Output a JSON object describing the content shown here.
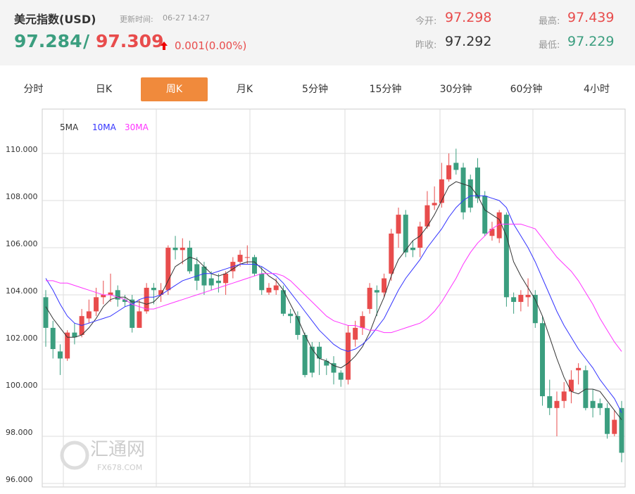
{
  "header": {
    "title": "美元指数(USD)",
    "update_label": "更新时间:",
    "update_time": "06-27 14:27",
    "price": "97.284",
    "separator": "/",
    "price2": "97.309",
    "change": "0.001(0.00%)",
    "stats": [
      {
        "label": "今开:",
        "value": "97.298"
      },
      {
        "label": "最高:",
        "value": "97.439"
      },
      {
        "label": "昨收:",
        "value": "97.292"
      },
      {
        "label": "最低:",
        "value": "97.229"
      }
    ]
  },
  "tabs": [
    "分时",
    "日K",
    "周K",
    "月K",
    "5分钟",
    "15分钟",
    "30分钟",
    "60分钟",
    "4小时"
  ],
  "active_tab": "周K",
  "watermark": {
    "name": "汇通网",
    "site": "FX678.COM"
  },
  "chart_data": {
    "type": "candlestick",
    "up_color": "#e84c4c",
    "down_color": "#3b9e7f",
    "grid": true,
    "ylim": [
      96,
      112
    ],
    "yticks": [
      {
        "value": 96,
        "label": "96.000"
      },
      {
        "value": 98,
        "label": "98.000"
      },
      {
        "value": 100,
        "label": "100.000"
      },
      {
        "value": 102,
        "label": "102.000"
      },
      {
        "value": 104,
        "label": "104.000"
      },
      {
        "value": 106,
        "label": "106.000"
      },
      {
        "value": 108,
        "label": "108.000"
      },
      {
        "value": 110,
        "label": "110.000"
      }
    ],
    "open": [
      103.9,
      102.6,
      101.6,
      101.3,
      102.4,
      102.3,
      103.0,
      103.3,
      103.9,
      104.0,
      104.2,
      103.8,
      103.8,
      102.6,
      103.3,
      104.3,
      104.0,
      104.2,
      106.0,
      105.9,
      106.0,
      105.3,
      105.2,
      104.7,
      104.6,
      104.5,
      105.0,
      105.4,
      105.6,
      105.6,
      104.9,
      104.1,
      104.2,
      104.2,
      103.2,
      103.1,
      102.3,
      101.8,
      101.8,
      101.2,
      101.1,
      100.7,
      100.4,
      102.1,
      102.6,
      103.4,
      104.2,
      104.1,
      104.9,
      106.6,
      107.4,
      106.0,
      106.0,
      106.9,
      107.8,
      107.9,
      108.9,
      109.6,
      109.4,
      108.9,
      109.4,
      108.2,
      106.5,
      106.4,
      107.4,
      103.9,
      103.7,
      103.9,
      104.0,
      102.8,
      99.7,
      99.2,
      99.5,
      99.9,
      100.8,
      100.8,
      99.5,
      99.4,
      99.2,
      98.1,
      99.2
    ],
    "high": [
      104.2,
      102.9,
      101.9,
      102.5,
      102.8,
      103.4,
      103.8,
      104.3,
      104.6,
      104.9,
      104.4,
      104.0,
      104.0,
      103.8,
      104.5,
      104.5,
      104.5,
      106.1,
      106.5,
      106.4,
      106.3,
      105.6,
      105.4,
      105.0,
      104.9,
      105.0,
      105.6,
      105.9,
      106.1,
      105.7,
      105.2,
      104.5,
      104.7,
      104.4,
      103.4,
      103.3,
      102.4,
      102.0,
      102.0,
      101.3,
      101.4,
      100.8,
      102.7,
      102.9,
      103.3,
      104.5,
      104.4,
      104.9,
      106.8,
      107.7,
      107.6,
      106.3,
      107.1,
      108.4,
      108.6,
      109.6,
      110.0,
      110.2,
      109.6,
      109.1,
      109.8,
      108.4,
      107.1,
      107.6,
      107.5,
      104.1,
      104.2,
      104.7,
      104.2,
      103.1,
      100.4,
      99.9,
      100.3,
      100.8,
      101.1,
      101.0,
      100.0,
      99.6,
      99.4,
      99.1,
      99.5
    ],
    "low": [
      101.8,
      101.3,
      100.6,
      101.2,
      101.9,
      102.2,
      102.8,
      103.1,
      103.6,
      103.7,
      103.5,
      103.5,
      102.4,
      102.6,
      103.2,
      103.6,
      103.7,
      104.0,
      105.5,
      105.3,
      104.9,
      104.2,
      104.0,
      104.2,
      104.1,
      104.0,
      104.7,
      105.2,
      105.3,
      104.8,
      104.0,
      104.0,
      104.0,
      103.1,
      102.8,
      102.1,
      100.5,
      100.5,
      100.6,
      100.6,
      100.2,
      100.1,
      100.2,
      101.8,
      102.3,
      103.2,
      103.1,
      103.9,
      104.6,
      106.0,
      105.6,
      105.6,
      105.6,
      106.8,
      107.6,
      107.7,
      108.8,
      109.1,
      107.2,
      107.5,
      107.9,
      106.5,
      106.3,
      106.2,
      103.5,
      103.2,
      103.3,
      103.5,
      102.6,
      99.3,
      98.9,
      98.0,
      99.2,
      99.4,
      100.2,
      99.1,
      98.8,
      98.9,
      97.9,
      98.0,
      96.9
    ],
    "close": [
      102.6,
      101.7,
      101.3,
      102.4,
      102.2,
      103.1,
      103.3,
      103.9,
      104.0,
      104.1,
      103.8,
      103.7,
      102.6,
      103.3,
      104.3,
      104.2,
      104.2,
      106.0,
      105.9,
      106.0,
      105.0,
      104.6,
      104.4,
      104.4,
      104.5,
      104.9,
      105.4,
      105.7,
      105.6,
      104.9,
      104.2,
      104.3,
      104.4,
      103.2,
      103.1,
      102.3,
      100.6,
      100.7,
      101.3,
      101.0,
      100.7,
      100.4,
      102.4,
      102.6,
      103.1,
      104.3,
      104.1,
      104.7,
      106.6,
      107.4,
      105.8,
      105.9,
      106.9,
      107.8,
      107.9,
      108.9,
      109.5,
      109.3,
      107.5,
      107.7,
      108.1,
      106.6,
      106.8,
      107.5,
      103.9,
      103.7,
      104.0,
      104.0,
      102.8,
      99.7,
      99.2,
      99.5,
      99.9,
      100.4,
      100.9,
      99.2,
      99.2,
      99.2,
      98.1,
      98.7,
      97.3
    ],
    "series": [
      {
        "name": "5MA",
        "color": "#333333",
        "values": [
          103.5,
          103.0,
          102.6,
          102.2,
          102.2,
          102.3,
          102.6,
          103.0,
          103.5,
          103.8,
          103.9,
          103.9,
          103.7,
          103.7,
          103.6,
          103.7,
          104.0,
          104.6,
          105.2,
          105.4,
          105.6,
          105.5,
          105.2,
          104.9,
          104.8,
          104.9,
          105.1,
          105.3,
          105.4,
          105.4,
          105.1,
          104.8,
          104.6,
          104.2,
          103.6,
          103.0,
          102.3,
          101.7,
          101.3,
          101.2,
          101.0,
          100.9,
          101.1,
          101.4,
          101.8,
          102.4,
          103.2,
          103.9,
          104.8,
          105.5,
          105.9,
          106.3,
          106.5,
          106.9,
          107.4,
          108.0,
          108.6,
          108.8,
          108.7,
          108.6,
          108.2,
          107.6,
          107.4,
          107.2,
          106.5,
          105.4,
          104.8,
          104.3,
          103.8,
          103.1,
          102.2,
          101.3,
          100.5,
          99.9,
          99.8,
          100.0,
          100.0,
          99.9,
          99.5,
          99.1,
          98.7
        ]
      },
      {
        "name": "10MA",
        "color": "#3333ff",
        "values": [
          104.7,
          104.2,
          103.6,
          103.1,
          102.8,
          102.7,
          102.8,
          102.9,
          103.0,
          103.1,
          103.3,
          103.5,
          103.6,
          103.8,
          103.9,
          103.9,
          104.0,
          104.2,
          104.4,
          104.6,
          104.7,
          104.8,
          104.9,
          104.9,
          105.0,
          105.1,
          105.2,
          105.3,
          105.3,
          105.3,
          105.2,
          105.0,
          104.8,
          104.5,
          104.1,
          103.7,
          103.3,
          102.9,
          102.5,
          102.2,
          101.9,
          101.7,
          101.6,
          101.7,
          101.9,
          102.2,
          102.6,
          103.0,
          103.6,
          104.2,
          104.7,
          105.1,
          105.5,
          106.0,
          106.4,
          106.8,
          107.3,
          107.7,
          108.0,
          108.2,
          108.2,
          108.2,
          108.1,
          108.0,
          107.7,
          107.0,
          106.5,
          106.0,
          105.4,
          104.7,
          104.0,
          103.3,
          102.7,
          102.2,
          101.7,
          101.3,
          100.9,
          100.4,
          100.0,
          99.6,
          99.0
        ]
      },
      {
        "name": "30MA",
        "color": "#ff33ff",
        "values": [
          104.6,
          104.6,
          104.5,
          104.5,
          104.4,
          104.3,
          104.2,
          104.1,
          104.0,
          104.0,
          103.9,
          103.8,
          103.6,
          103.5,
          103.4,
          103.4,
          103.5,
          103.6,
          103.7,
          103.8,
          103.9,
          104.0,
          104.1,
          104.2,
          104.3,
          104.4,
          104.5,
          104.6,
          104.7,
          104.8,
          104.9,
          104.9,
          104.9,
          104.8,
          104.6,
          104.3,
          104.0,
          103.7,
          103.4,
          103.1,
          102.9,
          102.8,
          102.7,
          102.7,
          102.6,
          102.5,
          102.5,
          102.4,
          102.4,
          102.5,
          102.6,
          102.7,
          102.8,
          103.0,
          103.3,
          103.7,
          104.2,
          104.7,
          105.3,
          105.8,
          106.2,
          106.5,
          106.8,
          107.0,
          107.0,
          107.0,
          107.0,
          106.9,
          106.8,
          106.4,
          106.0,
          105.6,
          105.3,
          105.0,
          104.6,
          104.1,
          103.6,
          103.0,
          102.5,
          102.0,
          101.6
        ]
      }
    ]
  }
}
